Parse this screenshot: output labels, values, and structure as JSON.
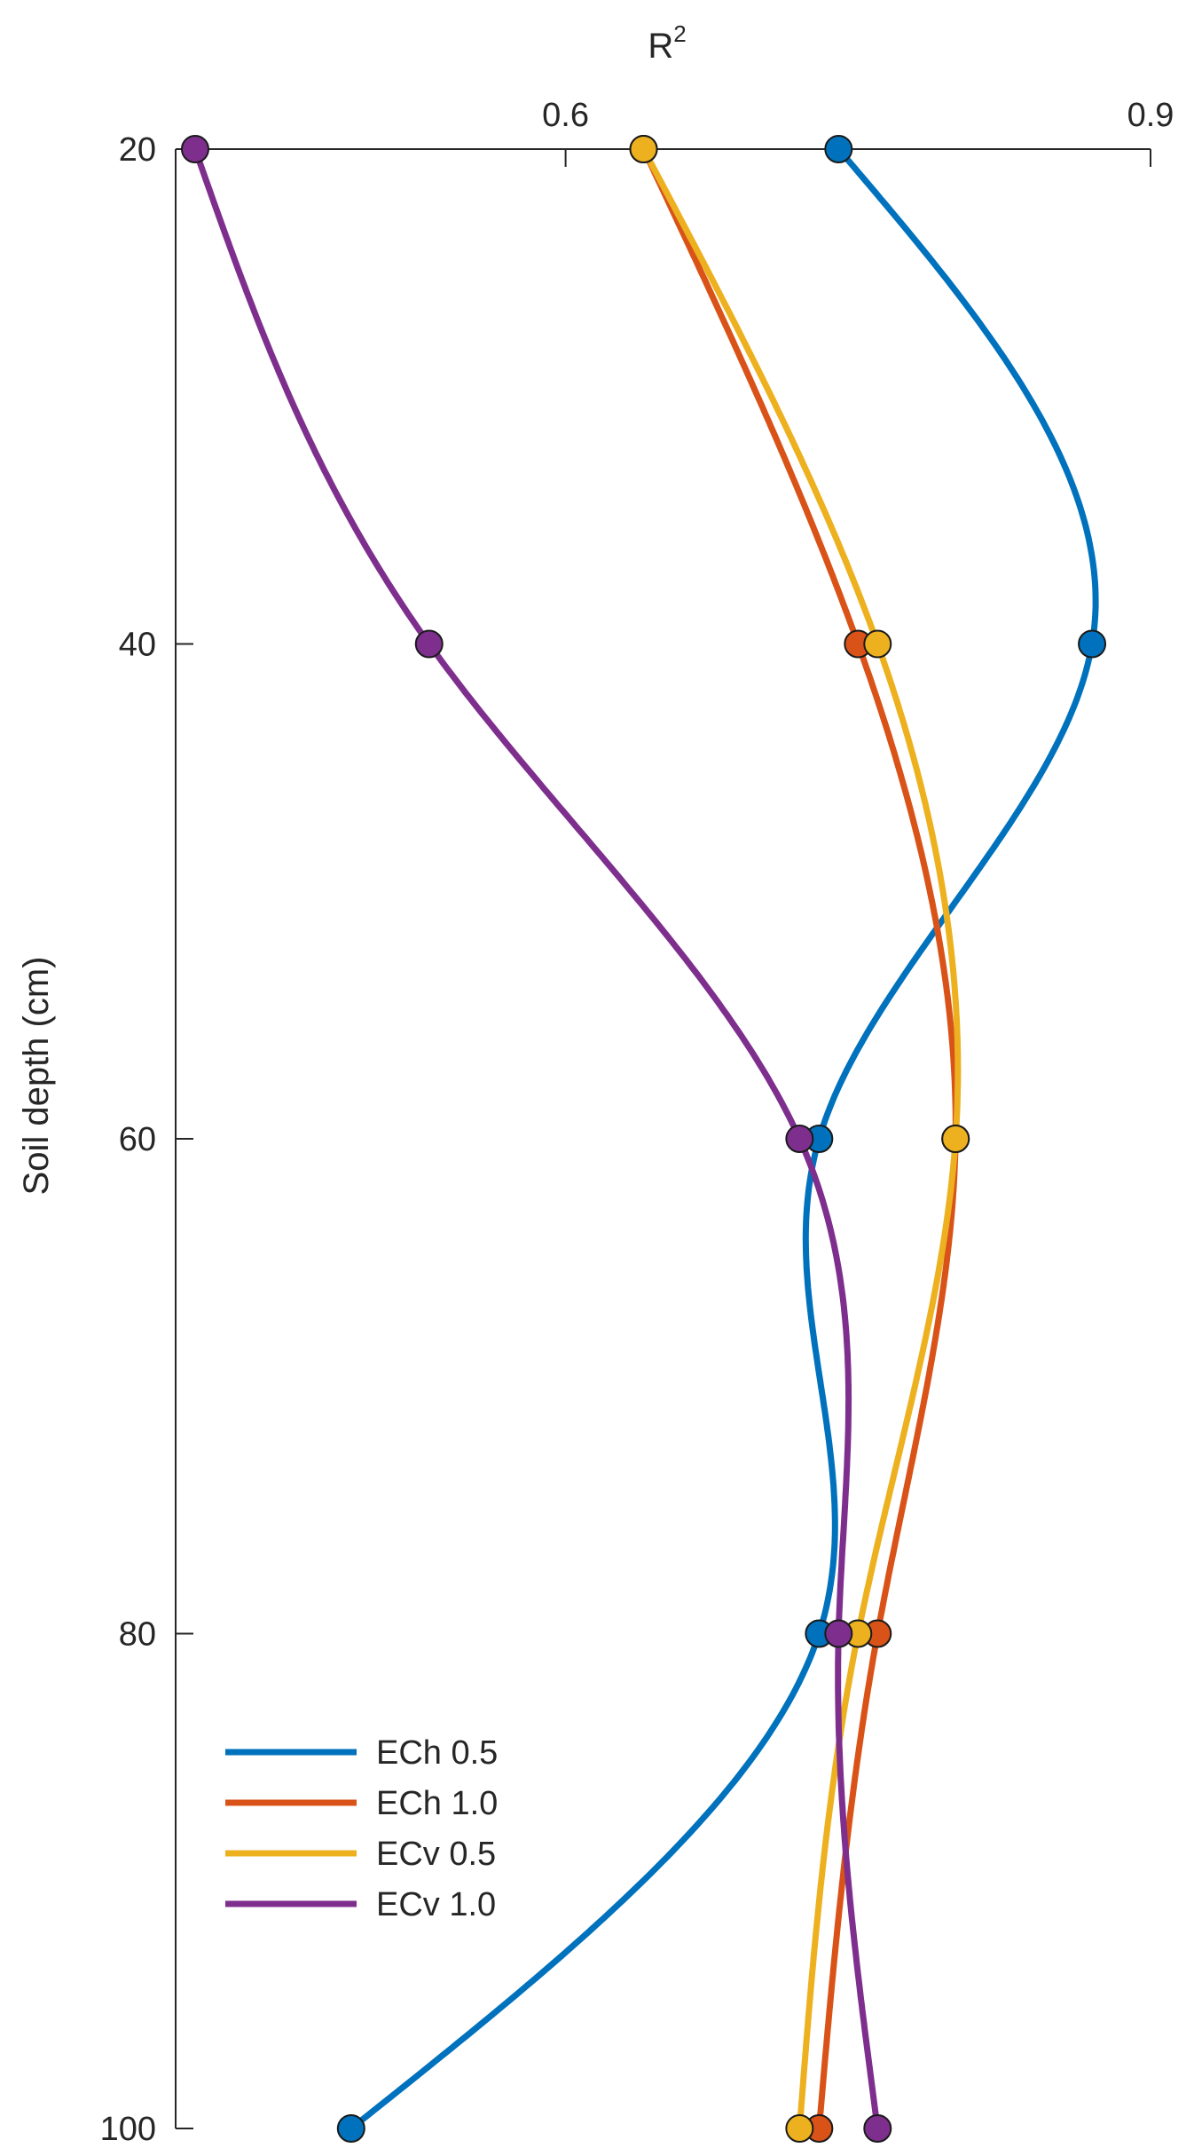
{
  "chart_data": {
    "type": "line",
    "orientation": "horizontal-profile",
    "xlabel": "R",
    "xlabel_superscript": "2",
    "ylabel": "Soil depth (cm)",
    "x_axis_position": "top",
    "y_reversed": true,
    "xlim": [
      0.4,
      0.9
    ],
    "ylim": [
      20,
      100
    ],
    "xticks": [
      0.6,
      0.9
    ],
    "xtick_labels": [
      "0.6",
      "0.9"
    ],
    "yticks": [
      20,
      40,
      60,
      80,
      100
    ],
    "ytick_labels": [
      "20",
      "40",
      "60",
      "80",
      "100"
    ],
    "grid": false,
    "legend_position": "bottom-left",
    "depths": [
      20,
      40,
      60,
      80,
      100
    ],
    "series": [
      {
        "name": "ECh 0.5",
        "color": "#0072BD",
        "values": [
          0.74,
          0.87,
          0.73,
          0.73,
          0.49
        ]
      },
      {
        "name": "ECh 1.0",
        "color": "#D95319",
        "values": [
          0.64,
          0.75,
          0.8,
          0.76,
          0.73
        ]
      },
      {
        "name": "ECv 0.5",
        "color": "#EDB120",
        "values": [
          0.64,
          0.76,
          0.8,
          0.75,
          0.72
        ]
      },
      {
        "name": "ECv 1.0",
        "color": "#7E2F8E",
        "values": [
          0.41,
          0.53,
          0.72,
          0.74,
          0.76
        ]
      }
    ]
  }
}
